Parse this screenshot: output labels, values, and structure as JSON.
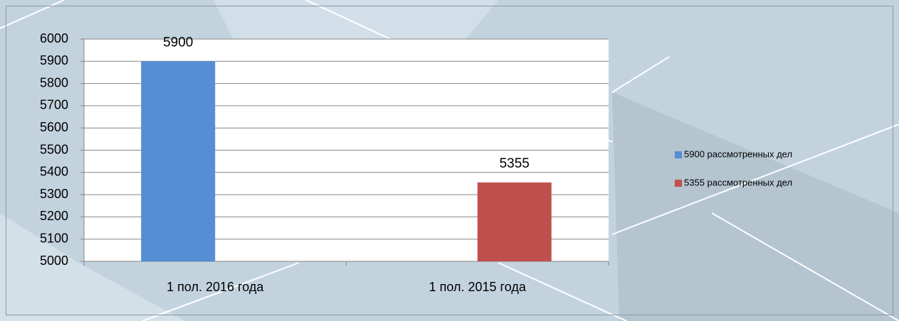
{
  "chart_data": {
    "type": "bar",
    "categories": [
      "1 пол. 2016 года",
      "1 пол. 2015 года"
    ],
    "series": [
      {
        "name": "5900 рассмотренных дел",
        "color": "#558ed5",
        "values": [
          5900,
          null
        ]
      },
      {
        "name": "5355 рассмотренных дел",
        "color": "#c0504d",
        "values": [
          null,
          5355
        ]
      }
    ],
    "ylim": [
      5000,
      6000
    ],
    "yticks": [
      5000,
      5100,
      5200,
      5300,
      5400,
      5500,
      5600,
      5700,
      5800,
      5900,
      6000
    ],
    "grid": true,
    "legend": "right",
    "data_labels": true
  }
}
